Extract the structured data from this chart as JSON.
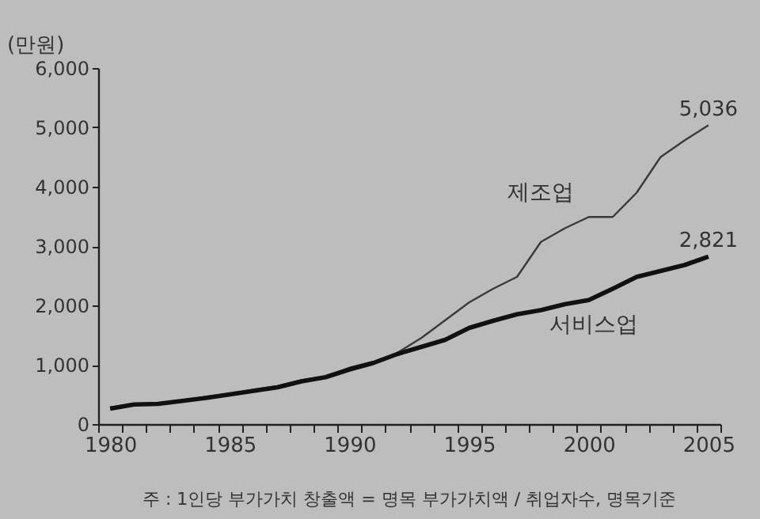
{
  "chart_data": {
    "type": "line",
    "ylabel": "(만원)",
    "annotations": [
      "주 : 1인당 부가가치 창출액 = 명목 부가가치액 / 취업자수, 명목기준"
    ],
    "categories": [
      "1980",
      null,
      null,
      null,
      null,
      "1985",
      null,
      null,
      null,
      null,
      "1990",
      null,
      null,
      null,
      null,
      "1995",
      null,
      null,
      null,
      null,
      "2000",
      null,
      null,
      null,
      null,
      "2005"
    ],
    "series": [
      {
        "name": "제조업",
        "color": "#3a3a3a",
        "values": [
          280,
          340,
          350,
          400,
          460,
          510,
          580,
          640,
          740,
          800,
          950,
          1050,
          1200,
          1450,
          1750,
          2050,
          2280,
          2480,
          3070,
          3300,
          3490,
          3490,
          3900,
          4500,
          4780,
          5036
        ],
        "value_labels": [
          null,
          null,
          null,
          null,
          null,
          null,
          null,
          null,
          null,
          null,
          null,
          null,
          null,
          null,
          null,
          null,
          null,
          null,
          null,
          null,
          null,
          null,
          null,
          null,
          null,
          "5,036"
        ]
      },
      {
        "name": "서비스업",
        "color": "#111111",
        "values": [
          260,
          330,
          340,
          390,
          440,
          500,
          560,
          620,
          720,
          790,
          920,
          1030,
          1180,
          1300,
          1420,
          1620,
          1740,
          1850,
          1920,
          2020,
          2090,
          2280,
          2480,
          2580,
          2680,
          2821
        ],
        "value_labels": [
          null,
          null,
          null,
          null,
          null,
          null,
          null,
          null,
          null,
          null,
          null,
          null,
          null,
          null,
          null,
          null,
          null,
          null,
          null,
          null,
          null,
          null,
          null,
          null,
          null,
          "2,821"
        ]
      }
    ],
    "ylim": [
      0,
      6000
    ],
    "yticks": [
      0,
      {
        "value": 1000,
        "label": "1,000"
      },
      {
        "value": 2000,
        "label": "2,000"
      },
      {
        "value": 3000,
        "label": "3,000"
      },
      {
        "value": 4000,
        "label": "4,000"
      },
      {
        "value": 5000,
        "label": "5,000"
      },
      {
        "value": 6000,
        "label": "6,000"
      }
    ],
    "grid": false,
    "legend": false,
    "marker": "none"
  }
}
